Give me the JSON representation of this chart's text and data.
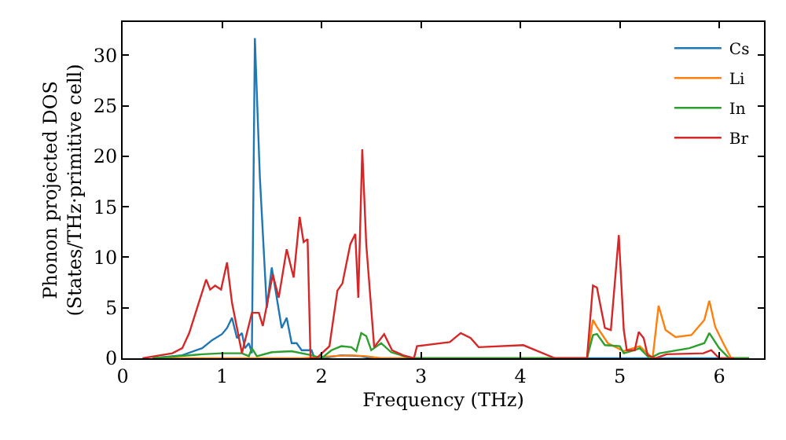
{
  "chart_data": {
    "type": "line",
    "xlabel": "Frequency (THz)",
    "ylabel": "Phonon projected DOS\n(States/THz·primitive cell)",
    "xlim": [
      0,
      6.45
    ],
    "ylim": [
      0,
      33.3
    ],
    "xticks": [
      0,
      1,
      2,
      3,
      4,
      5,
      6
    ],
    "yticks": [
      0,
      5,
      10,
      15,
      20,
      25,
      30
    ],
    "legend": "top right",
    "marker": "none",
    "line_style": "solid",
    "series": [
      {
        "name": "Cs",
        "color": "#1f77b4",
        "x": [
          0.3,
          0.6,
          0.8,
          0.9,
          1.0,
          1.05,
          1.1,
          1.15,
          1.2,
          1.23,
          1.27,
          1.3,
          1.33,
          1.38,
          1.45,
          1.5,
          1.55,
          1.6,
          1.65,
          1.7,
          1.75,
          1.8,
          1.9,
          1.93,
          2.0,
          2.2,
          2.4,
          2.5,
          3.0,
          6.3
        ],
        "values": [
          0,
          0.3,
          1,
          1.8,
          2.4,
          3,
          4,
          2,
          2.5,
          1,
          1.5,
          0.5,
          31.7,
          18,
          5,
          9,
          6,
          3,
          4,
          1.5,
          1.5,
          0.8,
          0.8,
          0,
          0,
          0.3,
          0.2,
          0,
          0,
          0
        ]
      },
      {
        "name": "Li",
        "color": "#ff7f0e",
        "x": [
          0.3,
          1.8,
          2.1,
          2.3,
          2.45,
          2.6,
          4.67,
          4.73,
          4.77,
          4.88,
          5.04,
          5.2,
          5.33,
          5.39,
          5.46,
          5.56,
          5.72,
          5.85,
          5.9,
          5.96,
          6.04,
          6.12,
          6.3
        ],
        "values": [
          0,
          0,
          0.2,
          0.3,
          0.2,
          0,
          0,
          3.8,
          3.1,
          1.5,
          0.7,
          1.2,
          0,
          5.2,
          2.8,
          2.1,
          2.3,
          3.8,
          5.7,
          3.1,
          1.5,
          0,
          0
        ]
      },
      {
        "name": "In",
        "color": "#2ca02c",
        "x": [
          0.3,
          0.8,
          1.0,
          1.2,
          1.27,
          1.3,
          1.35,
          1.5,
          1.7,
          1.9,
          2.0,
          2.1,
          2.2,
          2.3,
          2.35,
          2.4,
          2.45,
          2.5,
          2.6,
          2.7,
          2.9,
          4.67,
          4.73,
          4.77,
          4.85,
          5.0,
          5.04,
          5.15,
          5.2,
          5.3,
          5.4,
          5.7,
          5.85,
          5.9,
          6.0,
          6.1,
          6.3
        ],
        "values": [
          0,
          0.4,
          0.5,
          0.5,
          0.2,
          1,
          0.2,
          0.6,
          0.7,
          0.3,
          0,
          0.8,
          1.2,
          1.1,
          0.7,
          2.5,
          2.2,
          0.8,
          1.5,
          0.6,
          0,
          0,
          2.3,
          2.4,
          1.3,
          1.2,
          0.5,
          0.8,
          1.0,
          0,
          0.5,
          1.0,
          1.5,
          2.5,
          1,
          0,
          0
        ]
      },
      {
        "name": "Br",
        "color": "#d62728",
        "x": [
          0.2,
          0.5,
          0.6,
          0.67,
          0.84,
          0.88,
          0.93,
          0.99,
          1.05,
          1.1,
          1.2,
          1.3,
          1.37,
          1.41,
          1.51,
          1.57,
          1.65,
          1.72,
          1.78,
          1.82,
          1.86,
          1.89,
          1.95,
          2.08,
          2.16,
          2.21,
          2.29,
          2.34,
          2.37,
          2.41,
          2.45,
          2.53,
          2.63,
          2.71,
          2.82,
          2.93,
          2.96,
          3.29,
          3.4,
          3.5,
          3.58,
          4.03,
          4.35,
          4.67,
          4.73,
          4.77,
          4.85,
          4.91,
          4.99,
          5.04,
          5.07,
          5.15,
          5.19,
          5.24,
          5.28,
          5.36,
          5.47,
          5.84,
          5.92,
          6.0,
          6.15
        ],
        "values": [
          0,
          0.5,
          1,
          2.5,
          7.8,
          6.8,
          7.2,
          6.8,
          9.5,
          5.5,
          0.5,
          4.5,
          4.5,
          3.2,
          8.3,
          6,
          10.8,
          8,
          14,
          11.5,
          11.8,
          0,
          0,
          1.2,
          6.7,
          7.4,
          11.3,
          12.3,
          6,
          20.7,
          11.3,
          1.1,
          2.4,
          0.8,
          0.3,
          0,
          1.2,
          1.6,
          2.5,
          2,
          1.1,
          1.3,
          0,
          0,
          7.2,
          7,
          3,
          2.8,
          12.2,
          2.8,
          0.8,
          0.8,
          2.6,
          2,
          0.3,
          0,
          0.4,
          0.5,
          0.8,
          0,
          0
        ]
      }
    ]
  }
}
